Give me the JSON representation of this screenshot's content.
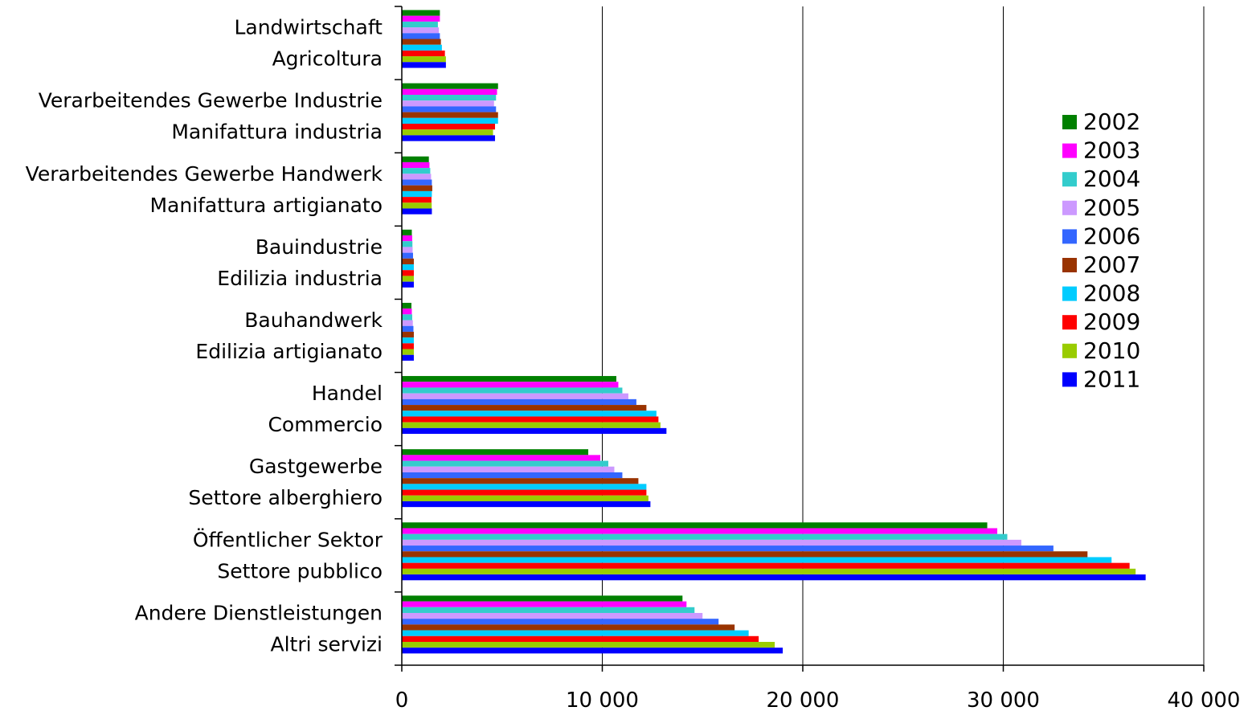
{
  "chart_data": {
    "type": "bar",
    "orientation": "horizontal",
    "categories": [
      [
        "Landwirtschaft",
        "Agricoltura"
      ],
      [
        "Verarbeitendes Gewerbe Industrie",
        "Manifattura industria"
      ],
      [
        "Verarbeitendes Gewerbe Handwerk",
        "Manifattura artigianato"
      ],
      [
        "Bauindustrie",
        "Edilizia industria"
      ],
      [
        "Bauhandwerk",
        "Edilizia artigianato"
      ],
      [
        "Handel",
        "Commercio"
      ],
      [
        "Gastgewerbe",
        "Settore alberghiero"
      ],
      [
        "Öffentlicher Sektor",
        "Settore pubblico"
      ],
      [
        "Andere Dienstleistungen",
        "Altri servizi"
      ]
    ],
    "series": [
      {
        "name": "2002",
        "color": "#008000",
        "values": [
          1900,
          4800,
          1350,
          500,
          480,
          10700,
          9300,
          29200,
          14000
        ]
      },
      {
        "name": "2003",
        "color": "#ff00ff",
        "values": [
          1900,
          4750,
          1380,
          520,
          500,
          10800,
          9900,
          29700,
          14200
        ]
      },
      {
        "name": "2004",
        "color": "#33cccc",
        "values": [
          1800,
          4700,
          1420,
          530,
          520,
          11000,
          10300,
          30200,
          14600
        ]
      },
      {
        "name": "2005",
        "color": "#cc99ff",
        "values": [
          1850,
          4600,
          1460,
          540,
          550,
          11300,
          10600,
          30900,
          15000
        ]
      },
      {
        "name": "2006",
        "color": "#3366ff",
        "values": [
          1900,
          4700,
          1500,
          560,
          580,
          11700,
          11000,
          32500,
          15800
        ]
      },
      {
        "name": "2007",
        "color": "#993300",
        "values": [
          1950,
          4800,
          1520,
          600,
          600,
          12200,
          11800,
          34200,
          16600
        ]
      },
      {
        "name": "2008",
        "color": "#00ccff",
        "values": [
          2000,
          4800,
          1500,
          600,
          600,
          12700,
          12200,
          35400,
          17300
        ]
      },
      {
        "name": "2009",
        "color": "#ff0000",
        "values": [
          2150,
          4650,
          1480,
          600,
          600,
          12800,
          12200,
          36300,
          17800
        ]
      },
      {
        "name": "2010",
        "color": "#99cc00",
        "values": [
          2200,
          4550,
          1490,
          600,
          600,
          12900,
          12300,
          36600,
          18600
        ]
      },
      {
        "name": "2011",
        "color": "#0000ff",
        "values": [
          2200,
          4650,
          1500,
          600,
          600,
          13200,
          12400,
          37100,
          19000
        ]
      }
    ],
    "xlim": [
      0,
      40000
    ],
    "xticks": [
      0,
      10000,
      20000,
      30000,
      40000
    ],
    "xtick_labels": [
      "0",
      "10 000",
      "20 000",
      "30 000",
      "40 000"
    ],
    "grid": "vertical major gridlines",
    "legend_position": "right",
    "title": "",
    "xlabel": "",
    "ylabel": ""
  }
}
